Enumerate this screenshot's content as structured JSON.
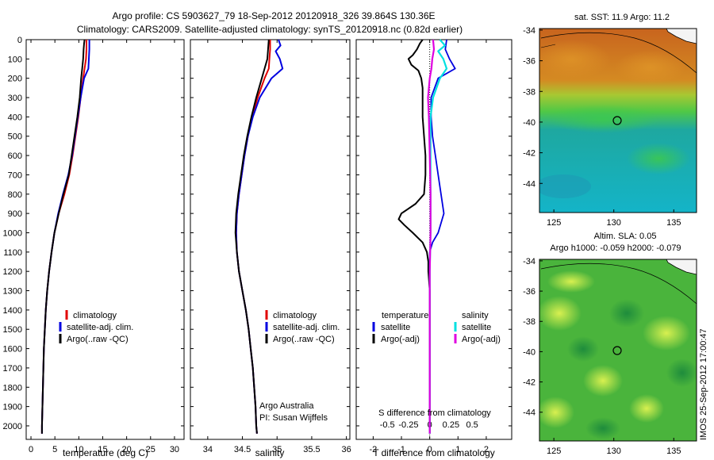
{
  "header": {
    "line1": "Argo profile: CS 5903627_79 18-Sep-2012 20120918_326 39.864S 130.36E",
    "line2": "Climatology: CARS2009. Satellite-adjusted climatology: synTS_20120918.nc (0.82d earlier)"
  },
  "colors": {
    "climatology": "#e00000",
    "satellite": "#0000e0",
    "argo": "#000000",
    "salinity_sat": "#00e0e0",
    "salinity_argo": "#e000e0"
  },
  "depth_axis": {
    "ylim": [
      0,
      2070
    ],
    "ticks": [
      "0",
      "100",
      "200",
      "300",
      "400",
      "500",
      "600",
      "700",
      "800",
      "900",
      "1000",
      "1100",
      "1200",
      "1300",
      "1400",
      "1500",
      "1600",
      "1700",
      "1800",
      "1900",
      "2000"
    ]
  },
  "chart_data": [
    {
      "type": "line",
      "id": "temperature",
      "xlabel": "temperature (deg C)",
      "xlim": [
        -1,
        32
      ],
      "xticks": [
        "0",
        "5",
        "10",
        "15",
        "20",
        "25",
        "30"
      ],
      "legend": [
        "climatology",
        "satellite-adj. clim.",
        "Argo(..raw -QC)"
      ],
      "series": [
        {
          "key": "climatology",
          "depth": [
            0,
            50,
            100,
            150,
            200,
            300,
            400,
            500,
            600,
            700,
            800,
            900,
            1000,
            1100,
            1200,
            1300,
            1400,
            1500,
            1600,
            1700,
            1800,
            1900,
            2000,
            2040
          ],
          "values": [
            11.6,
            11.6,
            11.5,
            11.2,
            10.9,
            10.4,
            9.9,
            9.3,
            8.7,
            8.0,
            7.0,
            5.8,
            4.9,
            4.3,
            3.8,
            3.4,
            3.1,
            2.9,
            2.7,
            2.6,
            2.5,
            2.4,
            2.3,
            2.3
          ]
        },
        {
          "key": "satellite",
          "depth": [
            0,
            50,
            100,
            150,
            200,
            300,
            400,
            500,
            600,
            700,
            800,
            900,
            1000,
            1100,
            1200,
            1300,
            1400,
            1500,
            1600,
            1700,
            1800,
            1900,
            2000,
            2040
          ],
          "values": [
            12.2,
            12.2,
            12.1,
            12.0,
            11.1,
            10.4,
            9.8,
            9.2,
            8.6,
            7.8,
            6.7,
            5.7,
            4.9,
            4.3,
            3.8,
            3.4,
            3.1,
            2.9,
            2.7,
            2.6,
            2.5,
            2.4,
            2.3,
            2.3
          ]
        },
        {
          "key": "argo",
          "depth": [
            0,
            20,
            50,
            100,
            150,
            200,
            300,
            400,
            500,
            600,
            700,
            800,
            900,
            1000,
            1100,
            1200,
            1300,
            1400,
            1500,
            1600,
            1700,
            1800,
            1900,
            2000,
            2040
          ],
          "values": [
            11.2,
            11.1,
            11.0,
            10.9,
            10.7,
            10.5,
            10.2,
            9.7,
            9.1,
            8.5,
            7.9,
            6.8,
            5.8,
            4.9,
            4.3,
            3.8,
            3.4,
            3.1,
            2.9,
            2.7,
            2.6,
            2.5,
            2.4,
            2.3,
            2.3
          ]
        }
      ]
    },
    {
      "type": "line",
      "id": "salinity",
      "xlabel": "salinity",
      "xlim": [
        33.75,
        36.05
      ],
      "xticks": [
        "34",
        "34.5",
        "35",
        "35.5",
        "36"
      ],
      "legend": [
        "climatology",
        "satellite-adj. clim.",
        "Argo(..raw -QC)"
      ],
      "annotation": [
        "Argo Australia",
        "PI: Susan Wijffels"
      ],
      "series": [
        {
          "key": "climatology",
          "depth": [
            0,
            50,
            100,
            150,
            200,
            300,
            400,
            500,
            600,
            700,
            800,
            900,
            1000,
            1100,
            1200,
            1300,
            1400,
            1500,
            1600,
            1700,
            1800,
            1900,
            2000,
            2040
          ],
          "values": [
            34.9,
            34.9,
            34.89,
            34.88,
            34.82,
            34.72,
            34.64,
            34.58,
            34.53,
            34.49,
            34.45,
            34.42,
            34.41,
            34.42,
            34.45,
            34.5,
            34.55,
            34.59,
            34.62,
            34.65,
            34.67,
            34.69,
            34.7,
            34.71
          ]
        },
        {
          "key": "satellite",
          "depth": [
            0,
            30,
            60,
            100,
            150,
            200,
            300,
            400,
            500,
            600,
            700,
            800,
            900,
            1000,
            1100,
            1200,
            1300,
            1400,
            1500,
            1600,
            1700,
            1800,
            1900,
            2000,
            2040
          ],
          "values": [
            35.02,
            35.05,
            34.98,
            35.04,
            35.08,
            34.92,
            34.75,
            34.65,
            34.58,
            34.53,
            34.49,
            34.45,
            34.42,
            34.41,
            34.42,
            34.45,
            34.5,
            34.55,
            34.59,
            34.62,
            34.65,
            34.67,
            34.69,
            34.7,
            34.71
          ]
        },
        {
          "key": "argo",
          "depth": [
            0,
            50,
            100,
            150,
            200,
            300,
            400,
            500,
            600,
            700,
            800,
            900,
            1000,
            1100,
            1200,
            1300,
            1400,
            1500,
            1600,
            1700,
            1800,
            1900,
            2000,
            2040
          ],
          "values": [
            34.88,
            34.87,
            34.86,
            34.82,
            34.78,
            34.7,
            34.63,
            34.57,
            34.52,
            34.48,
            34.44,
            34.41,
            34.4,
            34.42,
            34.45,
            34.5,
            34.55,
            34.59,
            34.62,
            34.65,
            34.67,
            34.69,
            34.7,
            34.71
          ]
        }
      ]
    },
    {
      "type": "line",
      "id": "differences",
      "xlabel": "T difference from climatology",
      "xlabel_top": "S difference from climatology",
      "xlim": [
        -2.6,
        2.9
      ],
      "xticks": [
        "-2",
        "-1",
        "0",
        "1",
        "2"
      ],
      "sticks": [
        "-0.5",
        "-0.25",
        "0",
        "0.25",
        "0.5"
      ],
      "legend_temp_title": "temperature",
      "legend_sal_title": "salinity",
      "legend_items": [
        "satellite",
        "Argo(-adj)"
      ],
      "series": [
        {
          "key": "t_argo",
          "depth": [
            0,
            20,
            50,
            80,
            100,
            130,
            160,
            200,
            250,
            300,
            400,
            500,
            600,
            700,
            800,
            850,
            880,
            900,
            930,
            960,
            1000,
            1050,
            1100,
            1150,
            1200,
            1300,
            1400,
            1500,
            1600,
            1800,
            2000,
            2040
          ],
          "values": [
            -0.25,
            -0.35,
            -0.45,
            -0.6,
            -0.75,
            -0.65,
            -0.4,
            -0.3,
            -0.25,
            -0.25,
            -0.25,
            -0.2,
            -0.15,
            -0.15,
            -0.2,
            -0.5,
            -0.8,
            -1.0,
            -1.1,
            -0.9,
            -0.6,
            -0.25,
            -0.1,
            -0.05,
            -0.05,
            0,
            0,
            0,
            0,
            0,
            0,
            0
          ]
        },
        {
          "key": "t_sat",
          "depth": [
            0,
            50,
            100,
            150,
            200,
            300,
            400,
            500,
            600,
            700,
            800,
            900,
            1000,
            1050,
            1100,
            1200,
            1300,
            1400,
            1500,
            1600,
            1800,
            2000,
            2040
          ],
          "values": [
            0.6,
            0.55,
            0.7,
            0.9,
            0.3,
            0.05,
            0.05,
            0.1,
            0.2,
            0.3,
            0.4,
            0.5,
            0.3,
            0.1,
            0,
            0,
            0,
            0,
            0,
            0,
            0,
            0,
            0
          ]
        },
        {
          "key": "s_sat",
          "depth": [
            0,
            30,
            60,
            100,
            150,
            200,
            300,
            400,
            500,
            700,
            900,
            1000,
            1200,
            1400,
            1600,
            1800,
            2000,
            2040
          ],
          "values": [
            0.12,
            0.18,
            0.1,
            0.16,
            0.2,
            0.12,
            0.04,
            0.01,
            0.01,
            0.01,
            0.01,
            0.01,
            0,
            0,
            0,
            0,
            0,
            0
          ]
        },
        {
          "key": "s_argo",
          "depth": [
            0,
            50,
            100,
            150,
            200,
            300,
            400,
            600,
            800,
            1000,
            1200,
            1400,
            1600,
            1800,
            2000,
            2040
          ],
          "values": [
            0.04,
            0.05,
            0.03,
            0.02,
            0.0,
            -0.02,
            -0.01,
            0.0,
            0.01,
            0.01,
            0,
            0,
            0,
            0,
            0,
            0
          ]
        }
      ]
    }
  ],
  "maps": {
    "sst": {
      "title": "sat. SST: 11.9 Argo: 11.2",
      "xticks": [
        "125",
        "130",
        "135"
      ],
      "yticks": [
        "-34",
        "-36",
        "-38",
        "-40",
        "-42",
        "-44"
      ]
    },
    "sla": {
      "title1": "Altim. SLA: 0.05",
      "title2": "Argo h1000: -0.059 h2000: -0.079",
      "xticks": [
        "125",
        "130",
        "135"
      ],
      "yticks": [
        "-34",
        "-36",
        "-38",
        "-40",
        "-42",
        "-44"
      ]
    },
    "side_label": "IMOS 25-Sep-2012 17:00:47"
  }
}
